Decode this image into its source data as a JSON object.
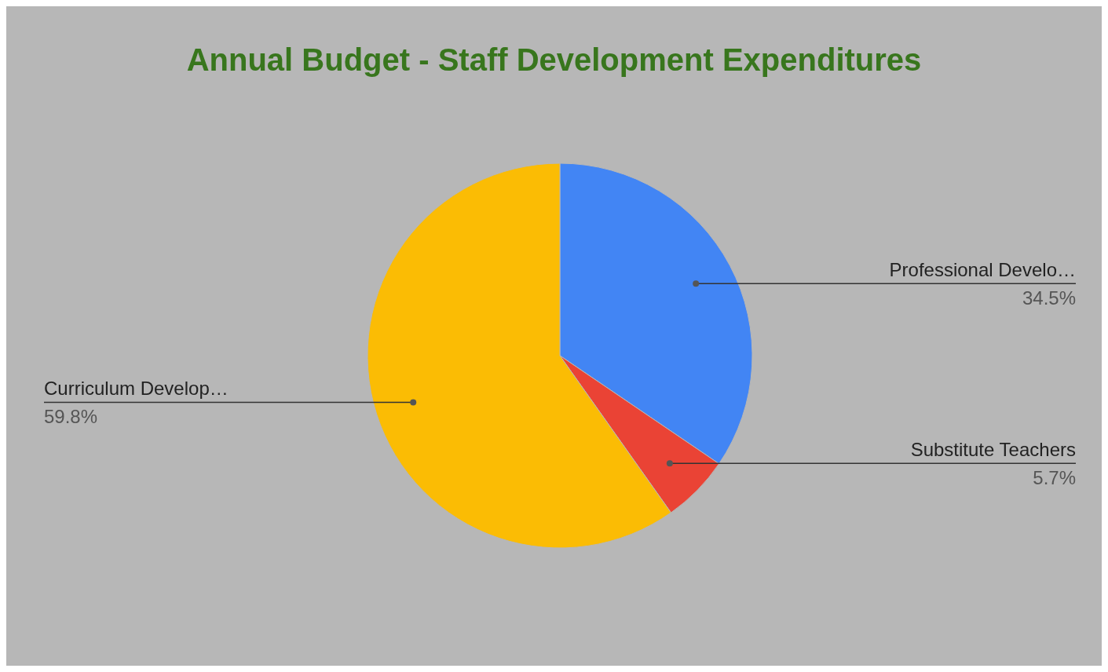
{
  "chart_data": {
    "type": "pie",
    "title": "Annual Budget - Staff Development Expenditures",
    "categories": [
      "Professional Develo…",
      "Substitute Teachers",
      "Curriculum Develop…"
    ],
    "values": [
      34.5,
      5.7,
      59.8
    ],
    "colors": [
      "#4285f4",
      "#ea4335",
      "#fbbc04"
    ],
    "value_labels": [
      "34.5%",
      "5.7%",
      "59.8%"
    ]
  }
}
